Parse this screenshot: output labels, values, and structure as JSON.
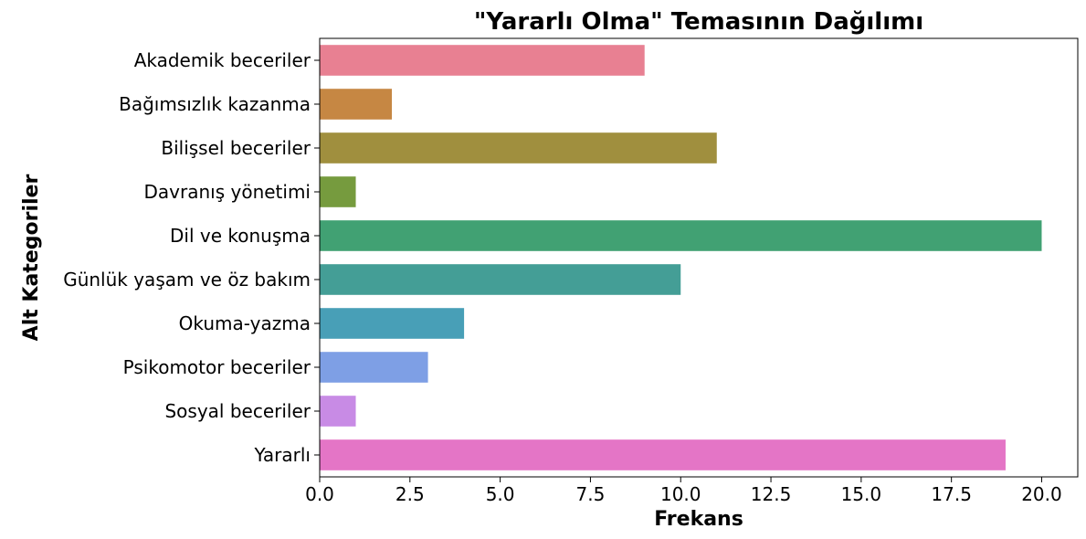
{
  "chart_data": {
    "type": "bar",
    "orientation": "horizontal",
    "title": "\"Yararlı Olma\" Temasının Dağılımı",
    "xlabel": "Frekans",
    "ylabel": "Alt Kategoriler",
    "xlim": [
      0,
      21
    ],
    "xticks": [
      0.0,
      2.5,
      5.0,
      7.5,
      10.0,
      12.5,
      15.0,
      17.5,
      20.0
    ],
    "xtick_labels": [
      "0.0",
      "2.5",
      "5.0",
      "7.5",
      "10.0",
      "12.5",
      "15.0",
      "17.5",
      "20.0"
    ],
    "grid": false,
    "categories": [
      "Akademik beceriler",
      "Bağımsızlık kazanma",
      "Bilişsel beceriler",
      "Davranış yönetimi",
      "Dil ve konuşma",
      "Günlük yaşam ve öz bakım",
      "Okuma-yazma",
      "Psikomotor beceriler",
      "Sosyal beceriler",
      "Yararlı"
    ],
    "values": [
      9,
      2,
      11,
      1,
      20,
      10,
      4,
      3,
      1,
      19
    ],
    "colors": [
      "#e88092",
      "#c68743",
      "#a08f3e",
      "#769b3e",
      "#41a173",
      "#449e96",
      "#489fb7",
      "#7e9fe5",
      "#c88be5",
      "#e475c6"
    ]
  }
}
